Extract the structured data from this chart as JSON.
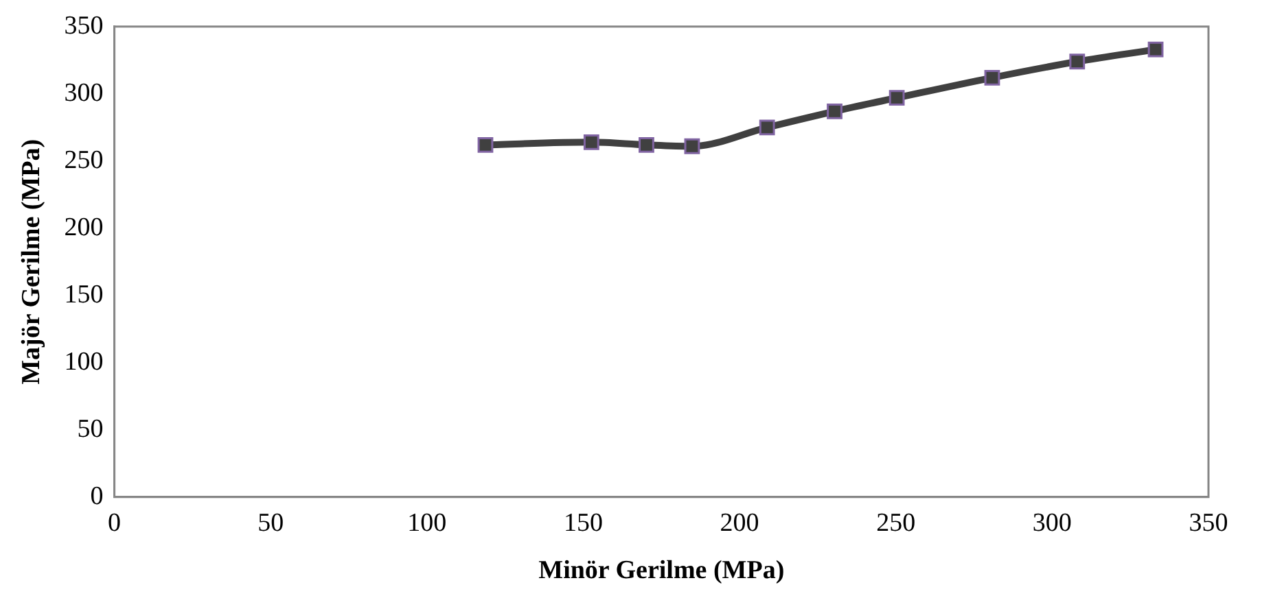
{
  "chart_data": {
    "type": "line",
    "xlabel": "Minör Gerilme (MPa)",
    "ylabel": "Majör Gerilme (MPa)",
    "x": [
      118.7,
      152.6,
      170.2,
      184.8,
      208.8,
      230.4,
      250.3,
      280.8,
      308,
      333.1
    ],
    "series": [
      {
        "color": "#404040",
        "values": [
          262,
          264,
          262,
          261,
          275,
          287,
          297,
          312,
          324,
          333
        ]
      }
    ],
    "xlim": [
      0,
      350
    ],
    "xticks": [
      0,
      50,
      100,
      150,
      200,
      250,
      300,
      350
    ],
    "ylim": [
      0,
      350
    ],
    "yticks": [
      0,
      50,
      100,
      150,
      200,
      250,
      300,
      350
    ],
    "grid": false,
    "legend": false,
    "marker": "square",
    "line_style": "solid"
  }
}
